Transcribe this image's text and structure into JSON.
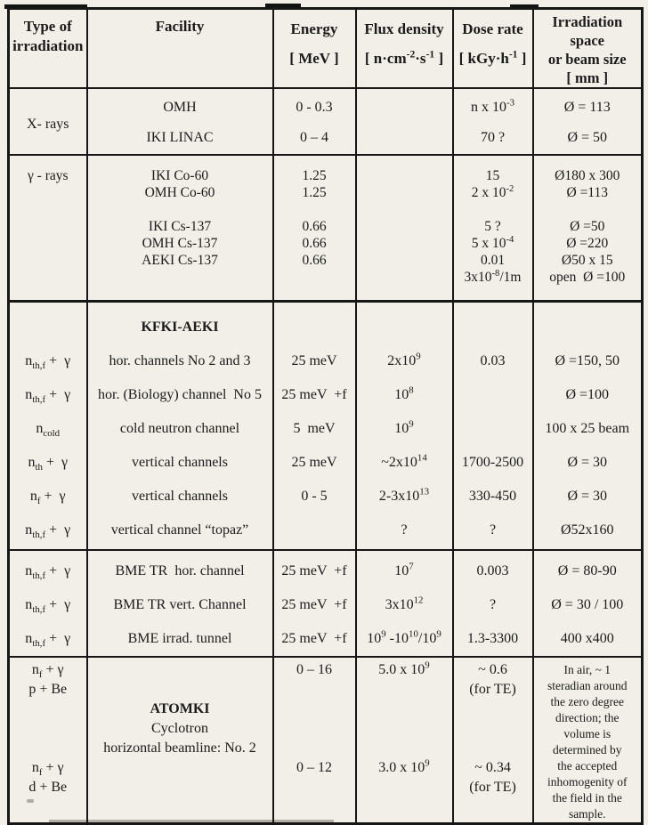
{
  "colors": {
    "paper": "#f2efe8",
    "ink": "#1b1b1b",
    "border": "#161616"
  },
  "table": {
    "header": {
      "cells": [
        {
          "lines": [
            "Type of",
            "irradiation"
          ]
        },
        {
          "lines": [
            "Facility"
          ]
        },
        {
          "lines": [
            "Energy",
            "[ MeV ]"
          ]
        },
        {
          "lines": [
            "Flux density",
            "[ n·cm^{-2}·s^{-1} ]"
          ]
        },
        {
          "lines": [
            "Dose rate",
            "[ kGy·h^{-1} ]"
          ]
        },
        {
          "lines": [
            "Irradiation",
            "space",
            "or beam size",
            "[ mm ]"
          ]
        }
      ]
    },
    "sections": [
      {
        "id": "x-rays",
        "cells": [
          [
            "X- rays"
          ],
          [
            "OMH",
            "IKI LINAC"
          ],
          [
            "0 - 0.3",
            "0 – 4"
          ],
          [],
          [
            "n x 10^{-3}",
            "70 ?"
          ],
          [
            "Ø = 113",
            "Ø = 50"
          ]
        ]
      },
      {
        "id": "gamma-rays",
        "cells": [
          [
            "γ - rays"
          ],
          [
            "IKI Co-60",
            "OMH Co-60",
            "",
            "IKI Cs-137",
            "OMH Cs-137",
            "AEKI Cs-137"
          ],
          [
            "1.25",
            "1.25",
            "",
            "0.66",
            "0.66",
            "0.66"
          ],
          [],
          [
            "15",
            "2 x 10^{-2}",
            "",
            "5 ?",
            "5 x 10^{-4}",
            "0.01",
            "3x10^{-8}/1m"
          ],
          [
            "Ø180 x 300",
            "Ø =113",
            "",
            "Ø =50",
            "Ø =220",
            "Ø50 x 15",
            "open  Ø =100"
          ]
        ]
      },
      {
        "id": "kfki-aeki",
        "cells": [
          [
            "",
            "n_{th,f} +  γ",
            "n_{th,f} +  γ",
            "n_{cold}",
            "n_{th} +  γ",
            "n_{f} +  γ",
            "n_{th,f} +  γ"
          ],
          [
            "**KFKI-AEKI**",
            "hor. channels No 2 and 3",
            "hor. (Biology) channel  No 5",
            "cold neutron channel",
            "vertical channels",
            "vertical channels",
            "vertical channel “topaz”"
          ],
          [
            "",
            "25 meV",
            "25 meV  +f",
            "5  meV",
            "25 meV",
            "0 - 5",
            ""
          ],
          [
            "",
            "2x10^{9}",
            "10^{8}",
            "10^{9}",
            "~2x10^{14}",
            "2-3x10^{13}",
            "?"
          ],
          [
            "",
            "0.03",
            "",
            "",
            "1700-2500",
            "330-450",
            "?"
          ],
          [
            "",
            "Ø =150, 50",
            "Ø =100",
            "100 x 25 beam",
            "Ø = 30",
            "Ø = 30",
            "Ø52x160"
          ]
        ]
      },
      {
        "id": "bme",
        "cells": [
          [
            "n_{th,f} +  γ",
            "n_{th,f} +  γ",
            "n_{th,f} +  γ"
          ],
          [
            "BME TR  hor. channel",
            "BME TR vert. Channel",
            "BME irrad. tunnel"
          ],
          [
            "25 meV  +f",
            "25 meV  +f",
            "25 meV  +f"
          ],
          [
            "10^{7}",
            "3x10^{12}",
            "10^{9} -10^{10}/10^{9}"
          ],
          [
            "0.003",
            "?",
            "1.3-3300"
          ],
          [
            "Ø = 80-90",
            "Ø = 30 / 100",
            "400 x400"
          ]
        ]
      },
      {
        "id": "atomki",
        "cells": [
          [
            "n_{f} + γ",
            "p + Be",
            "",
            "",
            "",
            "n_{f} + γ",
            "d + Be",
            ""
          ],
          [
            "",
            "",
            "**ATOMKI**",
            "Cyclotron",
            "horizontal beamline: No. 2",
            "",
            "",
            ""
          ],
          [
            "0 – 16",
            "",
            "",
            "",
            "",
            "0 – 12",
            "",
            ""
          ],
          [
            "5.0 x 10^{9}",
            "",
            "",
            "",
            "",
            "3.0 x 10^{9}",
            "",
            ""
          ],
          [
            "~ 0.6",
            "(for TE)",
            "",
            "",
            "",
            "~ 0.34",
            "(for TE)",
            ""
          ],
          [
            "In air, ~ 1",
            "steradian around",
            "the zero degree",
            "direction; the",
            "volume is",
            "determined by",
            "the accepted",
            "inhomogenity of",
            "the field in the",
            "sample."
          ]
        ]
      }
    ]
  }
}
